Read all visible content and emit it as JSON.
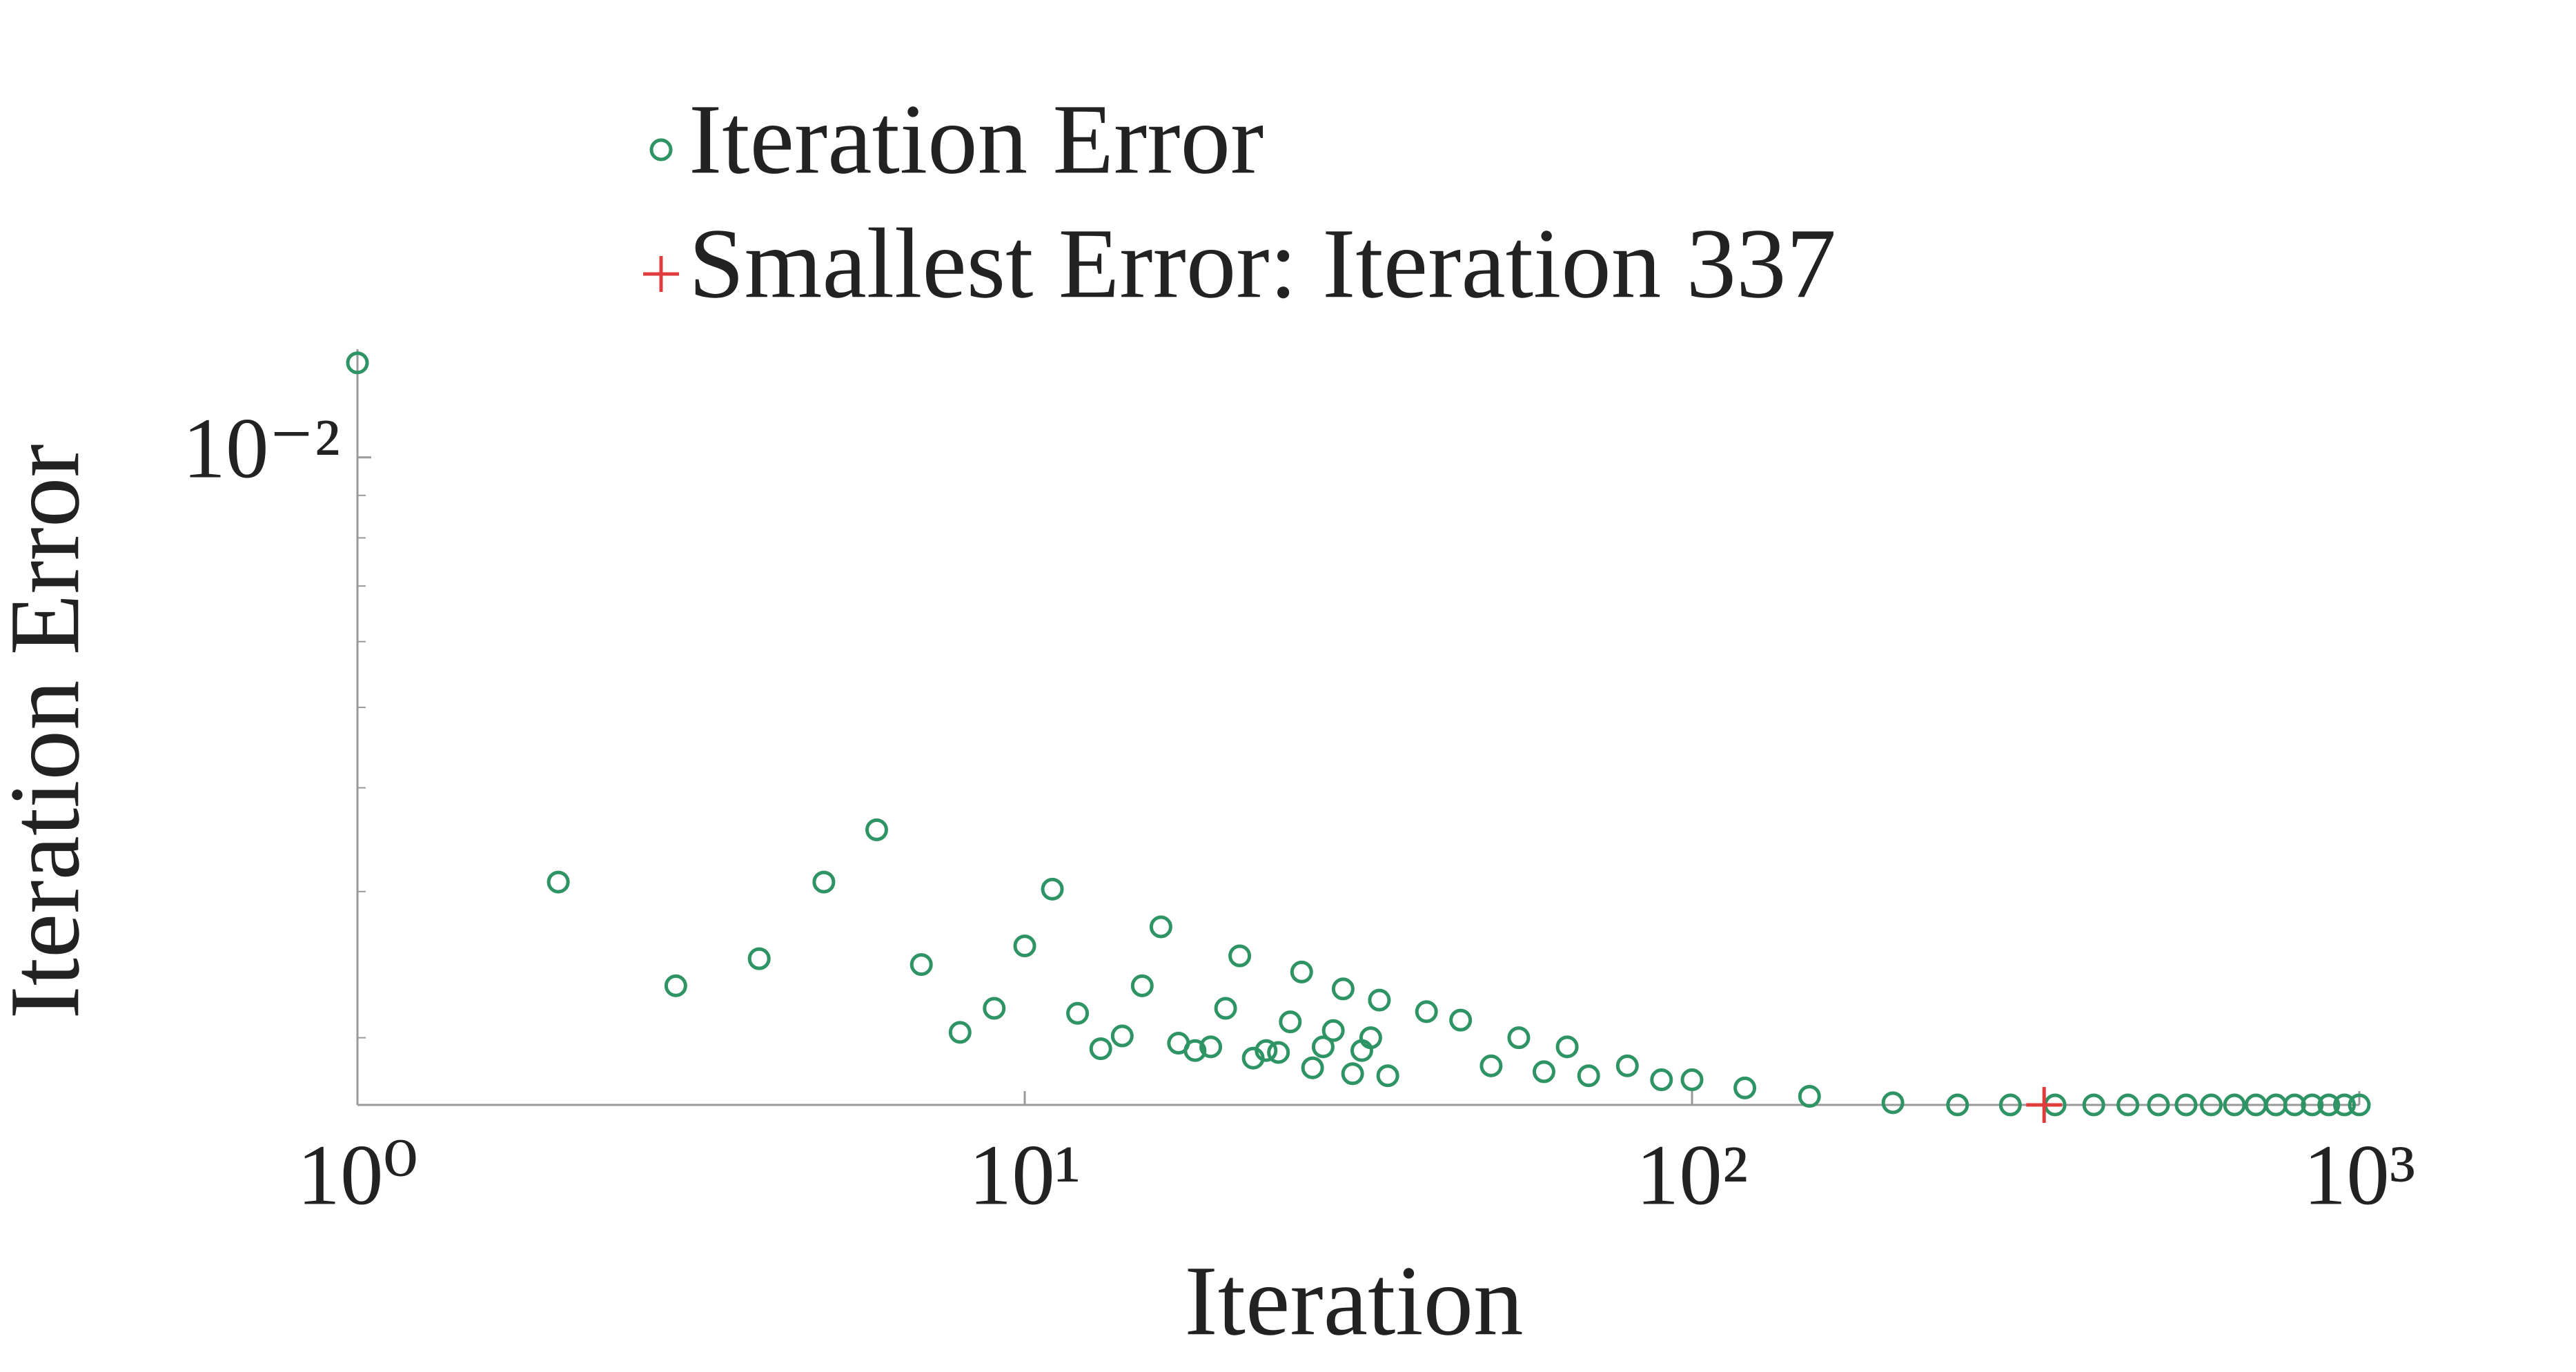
{
  "chart_data": {
    "type": "scatter",
    "xlabel": "Iteration",
    "ylabel": "Iteration Error",
    "xscale": "log",
    "yscale": "log",
    "xlim": [
      1,
      1000
    ],
    "ylim": [
      0.00166,
      0.0135
    ],
    "xticks": [
      {
        "value": 1,
        "label": "10⁰"
      },
      {
        "value": 10,
        "label": "10¹"
      },
      {
        "value": 100,
        "label": "10²"
      },
      {
        "value": 1000,
        "label": "10³"
      }
    ],
    "yticks": [
      {
        "value": 0.01,
        "label": "10⁻²"
      }
    ],
    "yminorticks": [
      0.002,
      0.003,
      0.004,
      0.005,
      0.006,
      0.007,
      0.008,
      0.009
    ],
    "series": [
      {
        "name": "Iteration Error",
        "color": "#2e9464",
        "marker": "circle",
        "x": [
          1,
          2,
          3,
          4,
          5,
          6,
          7,
          8,
          9,
          10,
          11,
          12,
          13,
          14,
          15,
          16,
          17,
          18,
          19,
          20,
          21,
          22,
          23,
          24,
          25,
          26,
          27,
          28,
          29,
          30,
          31,
          32,
          33,
          34,
          35,
          40,
          45,
          50,
          55,
          60,
          65,
          70,
          80,
          90,
          100,
          120,
          150,
          200,
          250,
          300,
          350,
          400,
          450,
          500,
          550,
          600,
          650,
          700,
          750,
          800,
          850,
          900,
          950,
          1000
        ],
        "values": [
          0.013,
          0.00308,
          0.00231,
          0.00249,
          0.00308,
          0.00356,
          0.00245,
          0.00203,
          0.00217,
          0.00258,
          0.00302,
          0.00214,
          0.00194,
          0.00201,
          0.00231,
          0.00272,
          0.00197,
          0.00193,
          0.00195,
          0.00217,
          0.00251,
          0.00189,
          0.00193,
          0.00192,
          0.00209,
          0.0024,
          0.00184,
          0.00195,
          0.00204,
          0.00229,
          0.00181,
          0.00193,
          0.002,
          0.00222,
          0.0018,
          0.00215,
          0.0021,
          0.00185,
          0.002,
          0.00182,
          0.00195,
          0.0018,
          0.00185,
          0.00178,
          0.00178,
          0.00174,
          0.0017,
          0.00167,
          0.00166,
          0.00166,
          0.00166,
          0.00166,
          0.00166,
          0.00166,
          0.00166,
          0.00166,
          0.00166,
          0.00166,
          0.00166,
          0.00166,
          0.00166,
          0.00166,
          0.00166,
          0.00166
        ]
      },
      {
        "name": "Smallest Error: Iteration 337",
        "color": "#e03c3c",
        "marker": "plus",
        "x": [
          337
        ],
        "values": [
          0.00166
        ]
      }
    ]
  }
}
